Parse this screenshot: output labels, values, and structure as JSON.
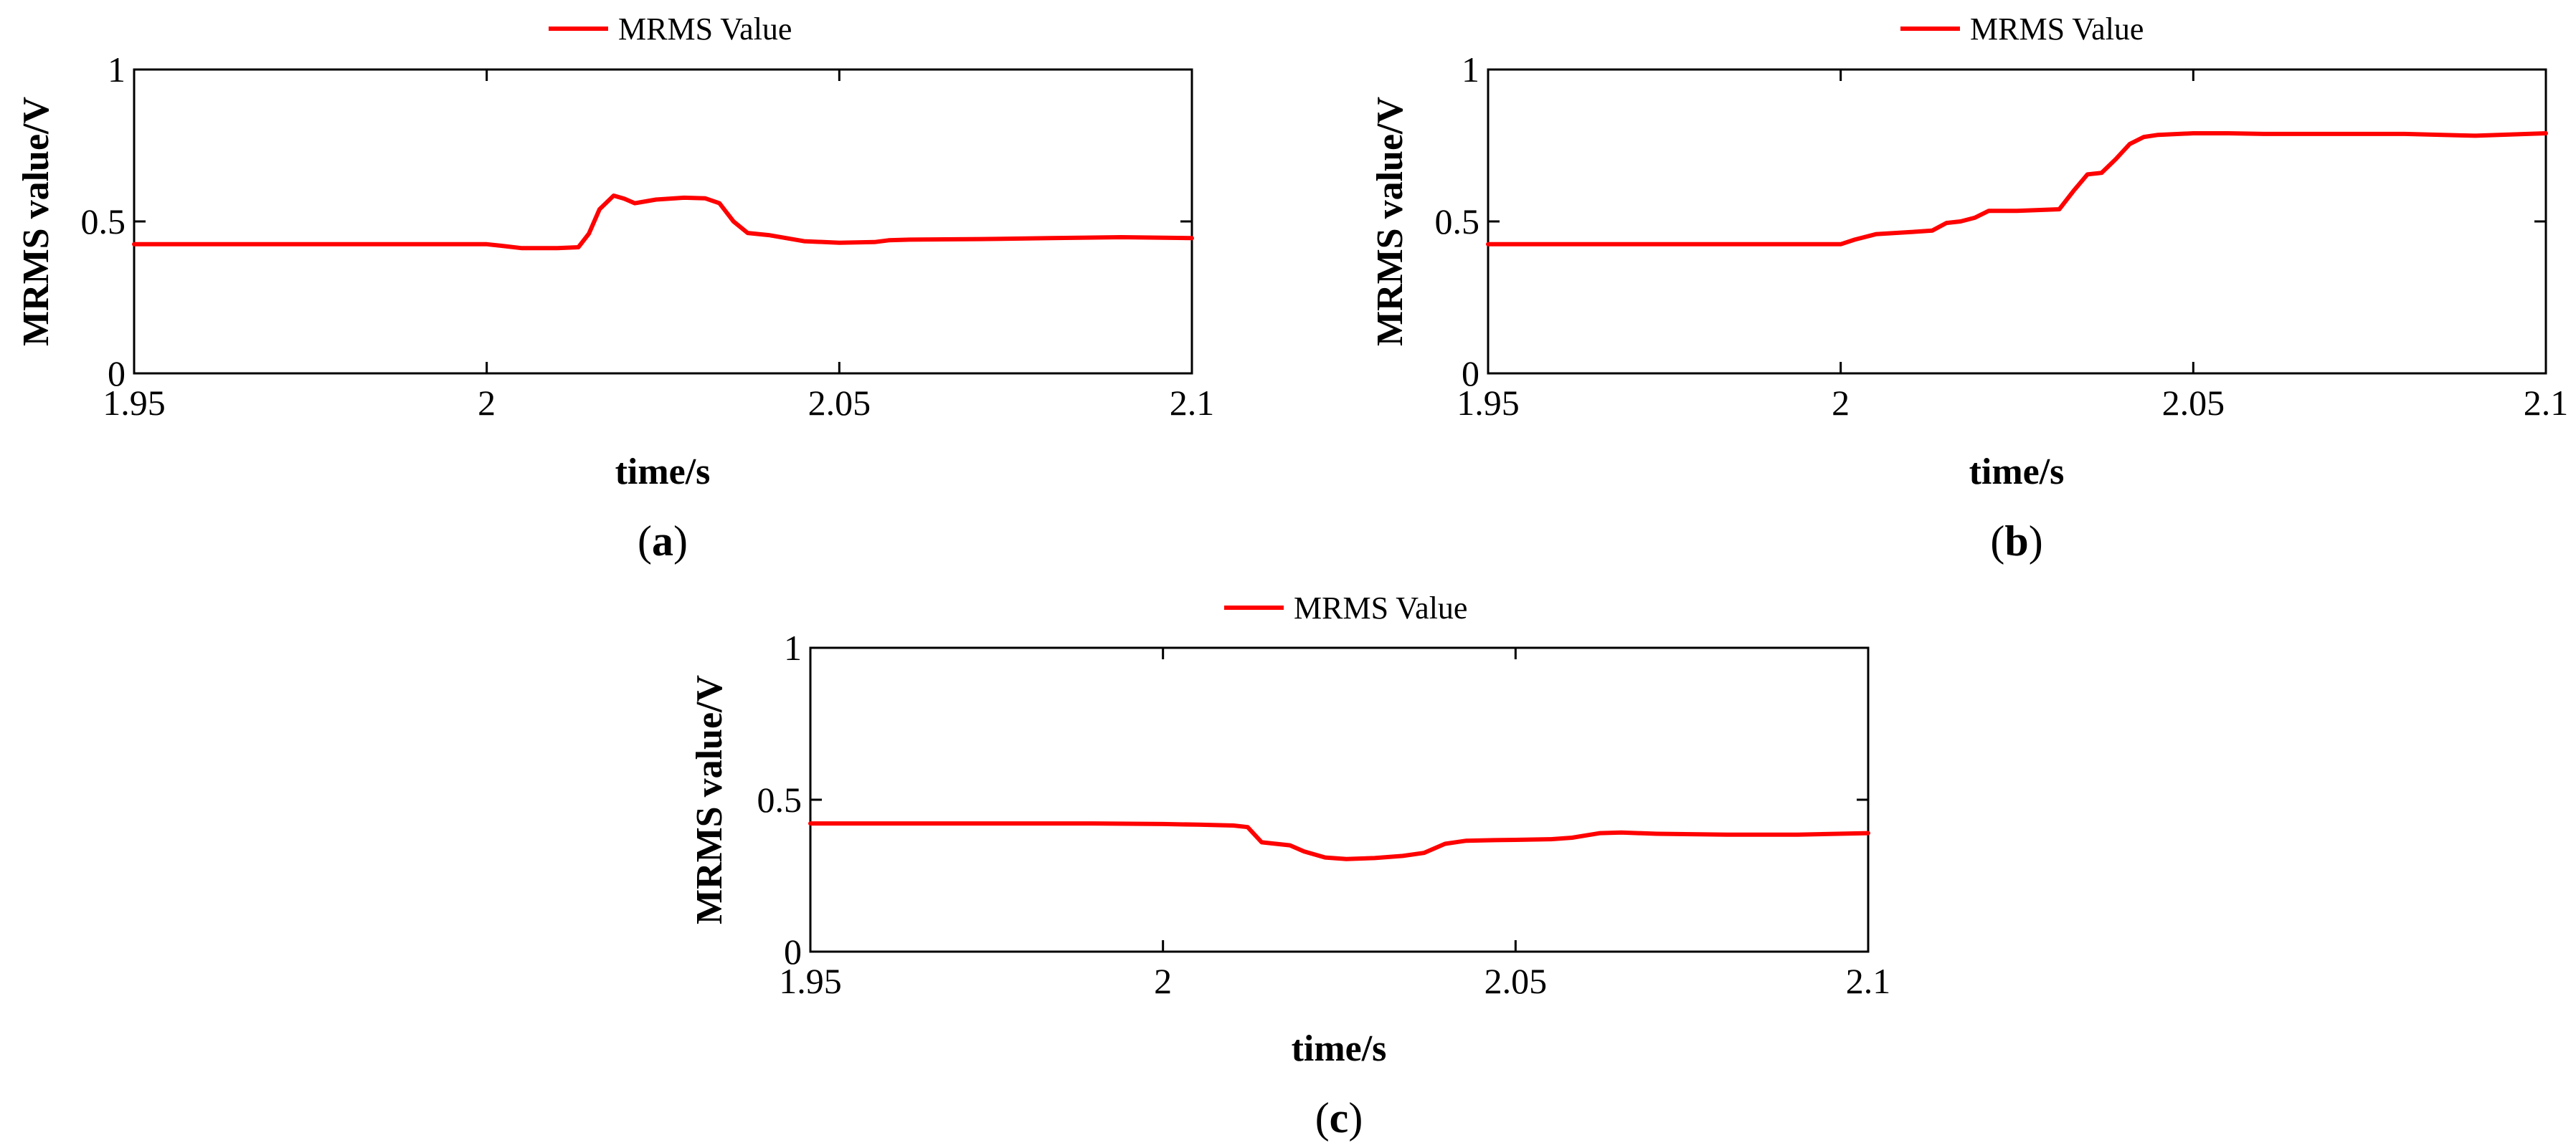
{
  "series_color": "#ff0000",
  "chart_data": [
    {
      "type": "line",
      "panel": "a",
      "caption_letter": "a",
      "title": "",
      "legend": [
        "MRMS Value"
      ],
      "legend_placement": "top-center",
      "xlabel": "time/s",
      "ylabel": "MRMS value/V",
      "xlim": [
        1.95,
        2.1
      ],
      "ylim": [
        0,
        1
      ],
      "xticks": [
        1.95,
        2,
        2.05,
        2.1
      ],
      "xtick_labels": [
        "1.95",
        "2",
        "2.05",
        "2.1"
      ],
      "yticks": [
        0,
        0.5,
        1
      ],
      "ytick_labels": [
        "0",
        "0.5",
        "1"
      ],
      "grid": false,
      "series": [
        {
          "name": "MRMS Value",
          "x": [
            1.95,
            1.98,
            1.99,
            2.0,
            2.002,
            2.005,
            2.01,
            2.013,
            2.0145,
            2.016,
            2.018,
            2.0195,
            2.021,
            2.024,
            2.028,
            2.031,
            2.033,
            2.035,
            2.037,
            2.04,
            2.045,
            2.05,
            2.055,
            2.057,
            2.06,
            2.07,
            2.08,
            2.09,
            2.1
          ],
          "y": [
            0.425,
            0.425,
            0.425,
            0.425,
            0.42,
            0.412,
            0.412,
            0.415,
            0.46,
            0.54,
            0.585,
            0.575,
            0.56,
            0.572,
            0.578,
            0.576,
            0.56,
            0.5,
            0.462,
            0.455,
            0.435,
            0.43,
            0.432,
            0.438,
            0.44,
            0.442,
            0.445,
            0.448,
            0.445
          ]
        }
      ]
    },
    {
      "type": "line",
      "panel": "b",
      "caption_letter": "b",
      "title": "",
      "legend": [
        "MRMS Value"
      ],
      "legend_placement": "top-center",
      "xlabel": "time/s",
      "ylabel": "MRMS value/V",
      "xlim": [
        1.95,
        2.1
      ],
      "ylim": [
        0,
        1
      ],
      "xticks": [
        1.95,
        2,
        2.05,
        2.1
      ],
      "xtick_labels": [
        "1.95",
        "2",
        "2.05",
        "2.1"
      ],
      "yticks": [
        0,
        0.5,
        1
      ],
      "ytick_labels": [
        "0",
        "0.5",
        "1"
      ],
      "grid": false,
      "series": [
        {
          "name": "MRMS Value",
          "x": [
            1.95,
            1.99,
            2.0,
            2.002,
            2.005,
            2.01,
            2.013,
            2.015,
            2.017,
            2.019,
            2.021,
            2.025,
            2.031,
            2.033,
            2.035,
            2.037,
            2.039,
            2.041,
            2.043,
            2.045,
            2.05,
            2.055,
            2.06,
            2.07,
            2.08,
            2.09,
            2.1
          ],
          "y": [
            0.425,
            0.425,
            0.425,
            0.44,
            0.458,
            0.465,
            0.47,
            0.495,
            0.5,
            0.512,
            0.535,
            0.535,
            0.54,
            0.6,
            0.655,
            0.66,
            0.705,
            0.755,
            0.778,
            0.785,
            0.79,
            0.79,
            0.788,
            0.788,
            0.788,
            0.782,
            0.79
          ]
        }
      ]
    },
    {
      "type": "line",
      "panel": "c",
      "caption_letter": "c",
      "title": "",
      "legend": [
        "MRMS Value"
      ],
      "legend_placement": "top-center",
      "xlabel": "time/s",
      "ylabel": "MRMS value/V",
      "xlim": [
        1.95,
        2.1
      ],
      "ylim": [
        0,
        1
      ],
      "xticks": [
        1.95,
        2,
        2.05,
        2.1
      ],
      "xtick_labels": [
        "1.95",
        "2",
        "2.05",
        "2.1"
      ],
      "yticks": [
        0,
        0.5,
        1
      ],
      "ytick_labels": [
        "0",
        "0.5",
        "1"
      ],
      "grid": false,
      "series": [
        {
          "name": "MRMS Value",
          "x": [
            1.95,
            1.98,
            1.99,
            2.0,
            2.005,
            2.01,
            2.012,
            2.014,
            2.016,
            2.018,
            2.02,
            2.023,
            2.026,
            2.03,
            2.034,
            2.037,
            2.04,
            2.043,
            2.047,
            2.05,
            2.055,
            2.058,
            2.062,
            2.065,
            2.07,
            2.08,
            2.09,
            2.1
          ],
          "y": [
            0.422,
            0.422,
            0.422,
            0.42,
            0.418,
            0.415,
            0.41,
            0.36,
            0.355,
            0.35,
            0.33,
            0.31,
            0.305,
            0.308,
            0.315,
            0.325,
            0.355,
            0.365,
            0.367,
            0.368,
            0.37,
            0.375,
            0.39,
            0.392,
            0.388,
            0.385,
            0.385,
            0.39
          ]
        }
      ]
    }
  ]
}
